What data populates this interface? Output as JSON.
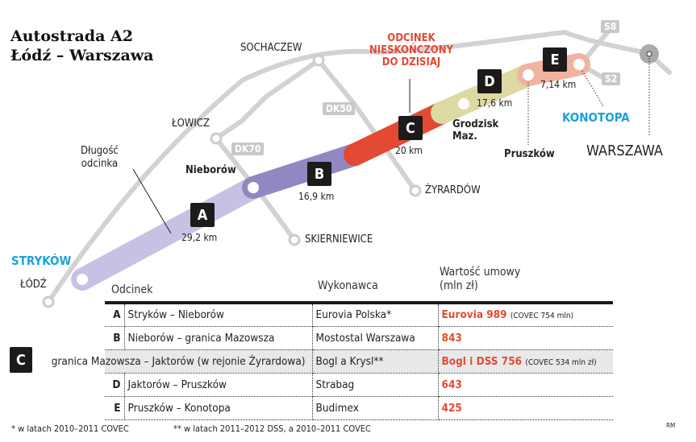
{
  "title": {
    "line1": "Autostrada A2",
    "line2": "Łódź – Warszawa"
  },
  "colors": {
    "A": "#c7c2e3",
    "B": "#9287c3",
    "C": "#e34a33",
    "D": "#ddd9a3",
    "E": "#f1b3a0",
    "road": "#cfcfcf",
    "accent_blue": "#1aa3d8",
    "accent_red": "#e34a33"
  },
  "map": {
    "cities": {
      "sochaczew": "SOCHACZEW",
      "lowicz": "ŁOWICZ",
      "nieborow": "Nieborów",
      "zyrardow": "ŻYRARDÓW",
      "skierniewice": "SKIERNIEWICE",
      "lodz": "ŁÓDŹ",
      "strykow": "STRYKÓW",
      "grodzisk": "Grodzisk\nMaz.",
      "pruszkow": "Pruszków",
      "konotopa": "KONOTOPA",
      "warszawa": "WARSZAWA"
    },
    "roads": {
      "dk50": "DK50",
      "dk70": "DK70",
      "s8": "S8",
      "s2": "S2"
    },
    "unfinished_note": "ODCINEK\nNIESKOŃCZONY\nDO DZISIAJ",
    "length_note": "Długość\nodcinka",
    "segments": [
      {
        "letter": "A",
        "length": "29,2 km"
      },
      {
        "letter": "B",
        "length": "16,9 km"
      },
      {
        "letter": "C",
        "length": "20 km"
      },
      {
        "letter": "D",
        "length": "17,6 km"
      },
      {
        "letter": "E",
        "length": "7,14 km"
      }
    ]
  },
  "table": {
    "headers": {
      "section": "Odcinek",
      "contractor": "Wykonawca",
      "value": "Wartość umowy\n(mln zł)"
    },
    "rows": [
      {
        "letter": "A",
        "section": "Stryków – Nieborów",
        "contractor": "Eurovia Polska*",
        "value": "Eurovia 989",
        "note": "(COVEC 754 mln)"
      },
      {
        "letter": "B",
        "section": "Nieborów – granica Mazowsza",
        "contractor": "Mostostal Warszawa",
        "value": "843",
        "note": ""
      },
      {
        "letter": "C",
        "section": "granica Mazowsza – Jaktorów (w rejonie Żyrardowa)",
        "contractor": "Bogl a Krysl**",
        "value": "Bogl i DSS 756",
        "note": "(COVEC 534 mln zł)"
      },
      {
        "letter": "D",
        "section": "Jaktorów – Pruszków",
        "contractor": "Strabag",
        "value": "643",
        "note": ""
      },
      {
        "letter": "E",
        "section": "Pruszków – Konotopa",
        "contractor": "Budimex",
        "value": "425",
        "note": ""
      }
    ]
  },
  "footnotes": {
    "one": "* w latach 2010–2011 COVEC",
    "two": "** w latach 2011–2012 DSS, a 2010–2011 COVEC",
    "credit": "RM"
  }
}
